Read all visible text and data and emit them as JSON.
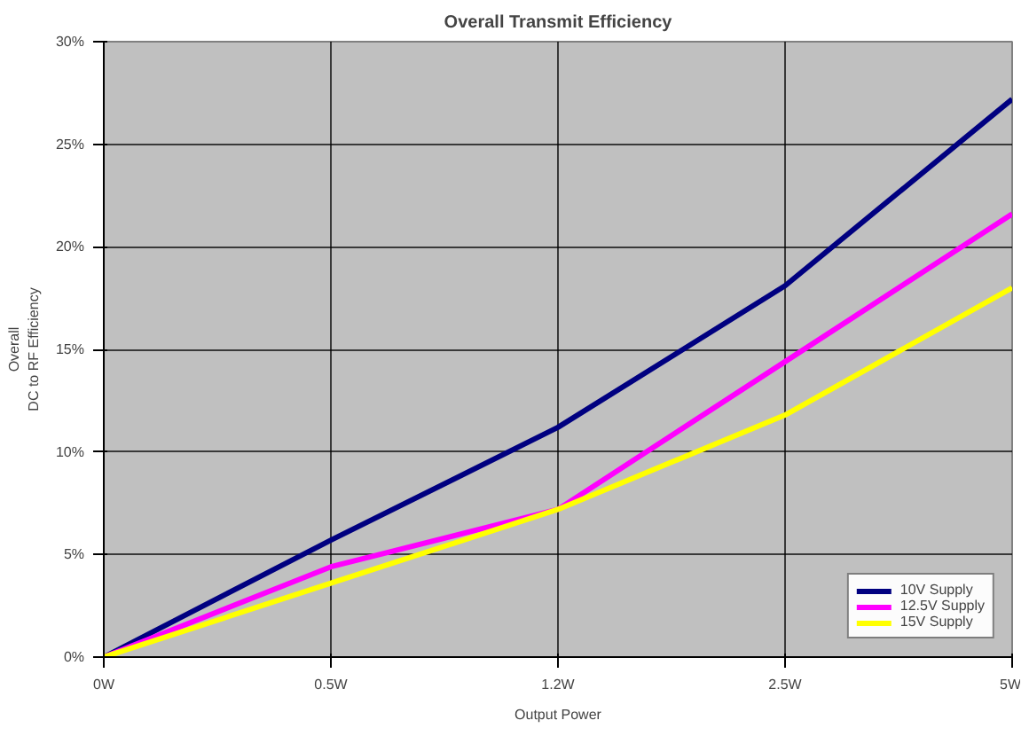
{
  "chart_data": {
    "type": "line",
    "title": "Overall Transmit Efficiency",
    "xlabel": "Output Power",
    "ylabel": "Overall\nDC to RF Efficiency",
    "categories": [
      "0W",
      "0.5W",
      "1.2W",
      "2.5W",
      "5W"
    ],
    "series": [
      {
        "name": "10V Supply",
        "color": "#000080",
        "values": [
          0,
          5.7,
          11.2,
          18.1,
          27.2
        ]
      },
      {
        "name": "12.5V Supply",
        "color": "#ff00ff",
        "values": [
          0,
          4.4,
          7.2,
          14.4,
          21.6
        ]
      },
      {
        "name": "15V Supply",
        "color": "#ffff00",
        "values": [
          0,
          3.6,
          7.2,
          11.8,
          18.0
        ]
      }
    ],
    "ylim": [
      0,
      30
    ],
    "yticks": [
      {
        "value": 0,
        "label": "0%"
      },
      {
        "value": 5,
        "label": "5%"
      },
      {
        "value": 10,
        "label": "10%"
      },
      {
        "value": 15,
        "label": "15%"
      },
      {
        "value": 20,
        "label": "20%"
      },
      {
        "value": 25,
        "label": "25%"
      },
      {
        "value": 30,
        "label": "30%"
      }
    ],
    "grid": true,
    "legend": "bottom right",
    "marker": "none",
    "line_style": "solid"
  }
}
